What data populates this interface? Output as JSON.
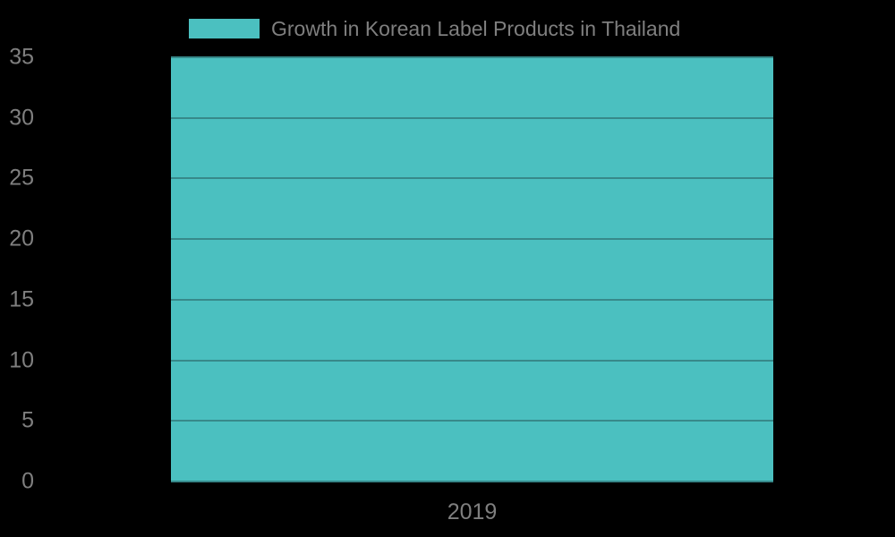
{
  "chart_data": {
    "type": "bar",
    "title": "Growth in Korean Label Products in Thailand",
    "categories": [
      "2019"
    ],
    "series": [
      {
        "name": "Growth in Korean Label Products in Thailand",
        "values": [
          35
        ]
      }
    ],
    "xlabel": "",
    "ylabel": "",
    "ylim": [
      0,
      35
    ],
    "yticks": [
      0,
      5,
      10,
      15,
      20,
      25,
      30,
      35
    ],
    "grid": true,
    "legend_position": "top",
    "colors": {
      "bar": "#4bc0c0",
      "gridline": "#37898a",
      "text": "#7f7f7f",
      "background": "#000000"
    }
  },
  "legend": {
    "label": "Growth in Korean Label Products in Thailand"
  },
  "x_axis": {
    "tick_label": "2019"
  }
}
